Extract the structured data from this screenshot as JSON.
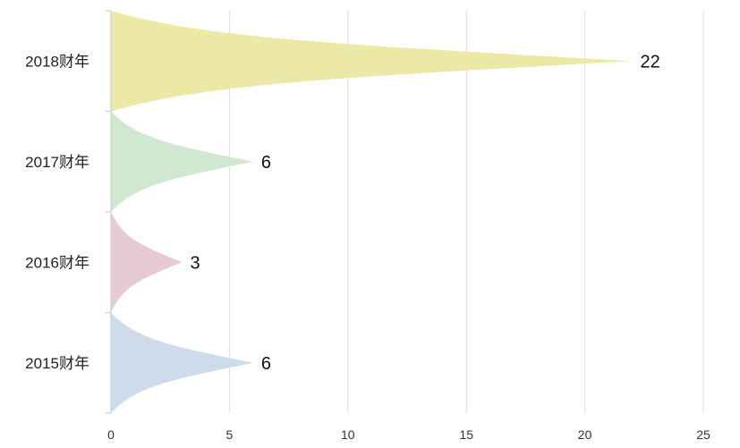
{
  "chart_data": {
    "type": "bar",
    "orientation": "horizontal",
    "categories": [
      "2018财年",
      "2017财年",
      "2016财年",
      "2015财年"
    ],
    "values": [
      22,
      6,
      3,
      6
    ],
    "data_labels": [
      "22",
      "6",
      "3",
      "6"
    ],
    "colors": [
      "#ece8a6",
      "#cfe8cf",
      "#e6cbd3",
      "#cddbea"
    ],
    "xlim": [
      0,
      25
    ],
    "xticks": [
      0,
      5,
      10,
      15,
      20,
      25
    ],
    "xtick_labels": [
      "0",
      "5",
      "10",
      "15",
      "20",
      "25"
    ],
    "grid": "vertical",
    "title": "",
    "xlabel": "",
    "ylabel": ""
  }
}
